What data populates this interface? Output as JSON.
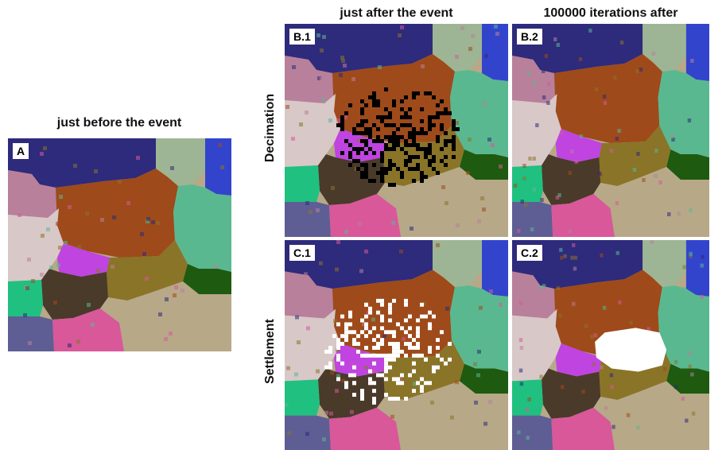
{
  "headings": {
    "before": "just before the event",
    "after_event": "just after the event",
    "iterations_after": "100000 iterations after"
  },
  "row_labels": {
    "decimation": "Decimation",
    "settlement": "Settlement"
  },
  "panels": [
    {
      "id": "A",
      "label": "A"
    },
    {
      "id": "B1",
      "label": "B.1"
    },
    {
      "id": "B2",
      "label": "B.2"
    },
    {
      "id": "C1",
      "label": "C.1"
    },
    {
      "id": "C2",
      "label": "C.2"
    }
  ],
  "colors": {
    "navy": "#2e2a7c",
    "sage": "#9db594",
    "blue": "#3344cc",
    "mauve": "#b8809a",
    "rust": "#9e4a1a",
    "pale_pink": "#d8c8c8",
    "teal": "#5ab890",
    "magenta": "#c044e0",
    "dark_brown": "#4a3a2a",
    "olive": "#8a7428",
    "dark_green": "#1e5a10",
    "jade": "#20c080",
    "slate": "#5e5e94",
    "pink": "#d8589a",
    "tan": "#b7a888",
    "decimated": "#000000",
    "settled": "#ffffff"
  }
}
